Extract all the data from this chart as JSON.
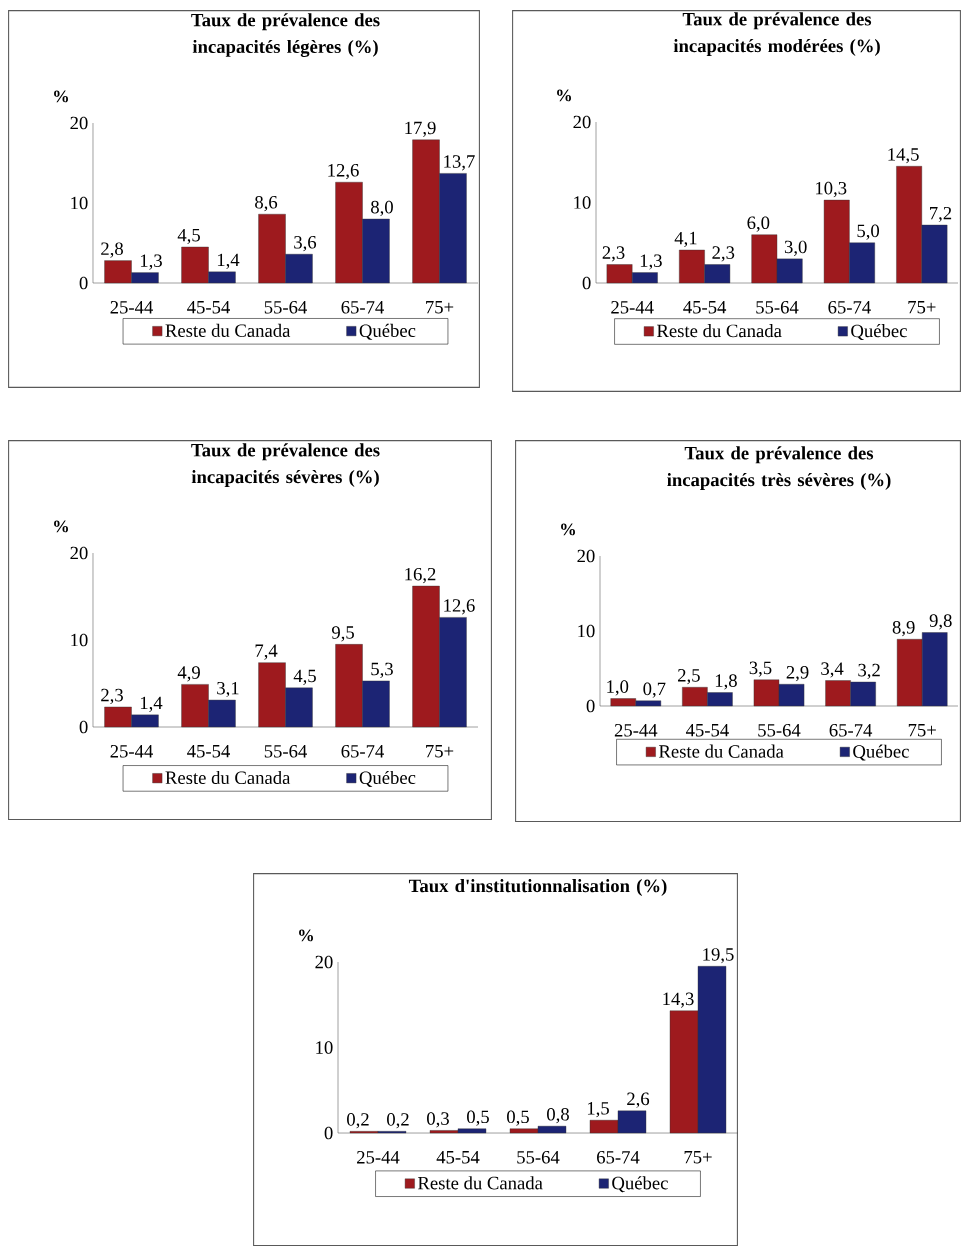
{
  "chart_data": [
    {
      "type": "bar",
      "title": "Taux de prévalence des incapacités légères (%)",
      "ylabel": "%",
      "categories": [
        "25-44",
        "45-54",
        "55-64",
        "65-74",
        "75+"
      ],
      "ylim": [
        0,
        20
      ],
      "yticks": [
        0,
        10,
        20
      ],
      "legend": "bottom",
      "series": [
        {
          "name": "Reste du Canada",
          "color": "#9e1a1e",
          "values": [
            2.8,
            4.5,
            8.6,
            12.6,
            17.9
          ],
          "value_labels": [
            "2,8",
            "4,5",
            "8,6",
            "12,6",
            "17,9"
          ]
        },
        {
          "name": "Québec",
          "color": "#1c2474",
          "values": [
            1.3,
            1.4,
            3.6,
            8.0,
            13.7
          ],
          "value_labels": [
            "1,3",
            "1,4",
            "3,6",
            "8,0",
            "13,7"
          ]
        }
      ]
    },
    {
      "type": "bar",
      "title": "Taux de prévalence des incapacités modérées (%)",
      "ylabel": "%",
      "categories": [
        "25-44",
        "45-54",
        "55-64",
        "65-74",
        "75+"
      ],
      "ylim": [
        0,
        20
      ],
      "yticks": [
        0,
        10,
        20
      ],
      "legend": "bottom",
      "series": [
        {
          "name": "Reste du Canada",
          "color": "#9e1a1e",
          "values": [
            2.3,
            4.1,
            6.0,
            10.3,
            14.5
          ],
          "value_labels": [
            "2,3",
            "4,1",
            "6,0",
            "10,3",
            "14,5"
          ]
        },
        {
          "name": "Québec",
          "color": "#1c2474",
          "values": [
            1.3,
            2.3,
            3.0,
            5.0,
            7.2
          ],
          "value_labels": [
            "1,3",
            "2,3",
            "3,0",
            "5,0",
            "7,2"
          ]
        }
      ]
    },
    {
      "type": "bar",
      "title": "Taux de prévalence des incapacités sévères (%)",
      "ylabel": "%",
      "categories": [
        "25-44",
        "45-54",
        "55-64",
        "65-74",
        "75+"
      ],
      "ylim": [
        0,
        20
      ],
      "yticks": [
        0,
        10,
        20
      ],
      "legend": "bottom",
      "series": [
        {
          "name": "Reste du Canada",
          "color": "#9e1a1e",
          "values": [
            2.3,
            4.9,
            7.4,
            9.5,
            16.2
          ],
          "value_labels": [
            "2,3",
            "4,9",
            "7,4",
            "9,5",
            "16,2"
          ]
        },
        {
          "name": "Québec",
          "color": "#1c2474",
          "values": [
            1.4,
            3.1,
            4.5,
            5.3,
            12.6
          ],
          "value_labels": [
            "1,4",
            "3,1",
            "4,5",
            "5,3",
            "12,6"
          ]
        }
      ]
    },
    {
      "type": "bar",
      "title": "Taux de prévalence des incapacités très sévères (%)",
      "ylabel": "%",
      "categories": [
        "25-44",
        "45-54",
        "55-64",
        "65-74",
        "75+"
      ],
      "ylim": [
        0,
        20
      ],
      "yticks": [
        0,
        10,
        20
      ],
      "legend": "bottom",
      "series": [
        {
          "name": "Reste du Canada",
          "color": "#9e1a1e",
          "values": [
            1.0,
            2.5,
            3.5,
            3.4,
            8.9
          ],
          "value_labels": [
            "1,0",
            "2,5",
            "3,5",
            "3,4",
            "8,9"
          ]
        },
        {
          "name": "Québec",
          "color": "#1c2474",
          "values": [
            0.7,
            1.8,
            2.9,
            3.2,
            9.8
          ],
          "value_labels": [
            "0,7",
            "1,8",
            "2,9",
            "3,2",
            "9,8"
          ]
        }
      ]
    },
    {
      "type": "bar",
      "title": "Taux d'institutionnalisation (%)",
      "ylabel": "%",
      "categories": [
        "25-44",
        "45-54",
        "55-64",
        "65-74",
        "75+"
      ],
      "ylim": [
        0,
        20
      ],
      "yticks": [
        0,
        10,
        20
      ],
      "legend": "bottom",
      "series": [
        {
          "name": "Reste du Canada",
          "color": "#9e1a1e",
          "values": [
            0.2,
            0.3,
            0.5,
            1.5,
            14.3
          ],
          "value_labels": [
            "0,2",
            "0,3",
            "0,5",
            "1,5",
            "14,3"
          ]
        },
        {
          "name": "Québec",
          "color": "#1c2474",
          "values": [
            0.2,
            0.5,
            0.8,
            2.6,
            19.5
          ],
          "value_labels": [
            "0,2",
            "0,5",
            "0,8",
            "2,6",
            "19,5"
          ]
        }
      ]
    }
  ]
}
